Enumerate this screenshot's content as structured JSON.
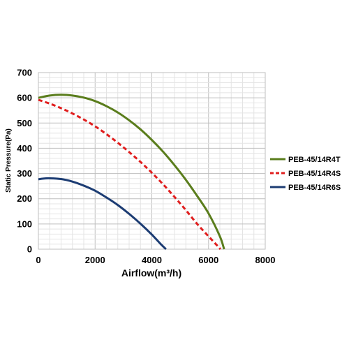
{
  "chart_data": {
    "type": "line",
    "title": "",
    "xlabel": "Airflow(m³/h)",
    "ylabel": "Static Pressure(Pa)",
    "xlim": [
      0,
      8000
    ],
    "ylim": [
      0,
      700
    ],
    "xticks": [
      0,
      2000,
      4000,
      6000,
      8000
    ],
    "yticks": [
      0,
      100,
      200,
      300,
      400,
      500,
      600,
      700
    ],
    "grid": true,
    "legend_position": "right",
    "series": [
      {
        "name": "PEB-45/14R4T",
        "color": "#5a7d1c",
        "style": "solid",
        "x": [
          0,
          400,
          800,
          1200,
          1600,
          2000,
          2400,
          2800,
          3200,
          3600,
          4000,
          4400,
          4800,
          5200,
          5600,
          6000,
          6400,
          6550
        ],
        "y": [
          600,
          609,
          612,
          609,
          601,
          587,
          567,
          542,
          511,
          475,
          433,
          386,
          333,
          275,
          211,
          142,
          51,
          0
        ]
      },
      {
        "name": "PEB-45/14R4S",
        "color": "#e01e1e",
        "style": "dashed",
        "x": [
          0,
          400,
          800,
          1200,
          1600,
          2000,
          2400,
          2800,
          3200,
          3600,
          4000,
          4400,
          4800,
          5200,
          5600,
          6000,
          6300,
          6420
        ],
        "y": [
          592,
          577,
          559,
          538,
          514,
          487,
          456,
          422,
          385,
          346,
          303,
          257,
          207,
          155,
          100,
          51,
          15,
          0
        ]
      },
      {
        "name": "PEB-45/14R6S",
        "color": "#1c3c73",
        "style": "solid",
        "x": [
          0,
          200,
          400,
          800,
          1200,
          1600,
          2000,
          2400,
          2800,
          3200,
          3600,
          4000,
          4300,
          4500
        ],
        "y": [
          277,
          280,
          281,
          278,
          268,
          252,
          232,
          205,
          175,
          140,
          101,
          58,
          22,
          0
        ]
      }
    ]
  }
}
